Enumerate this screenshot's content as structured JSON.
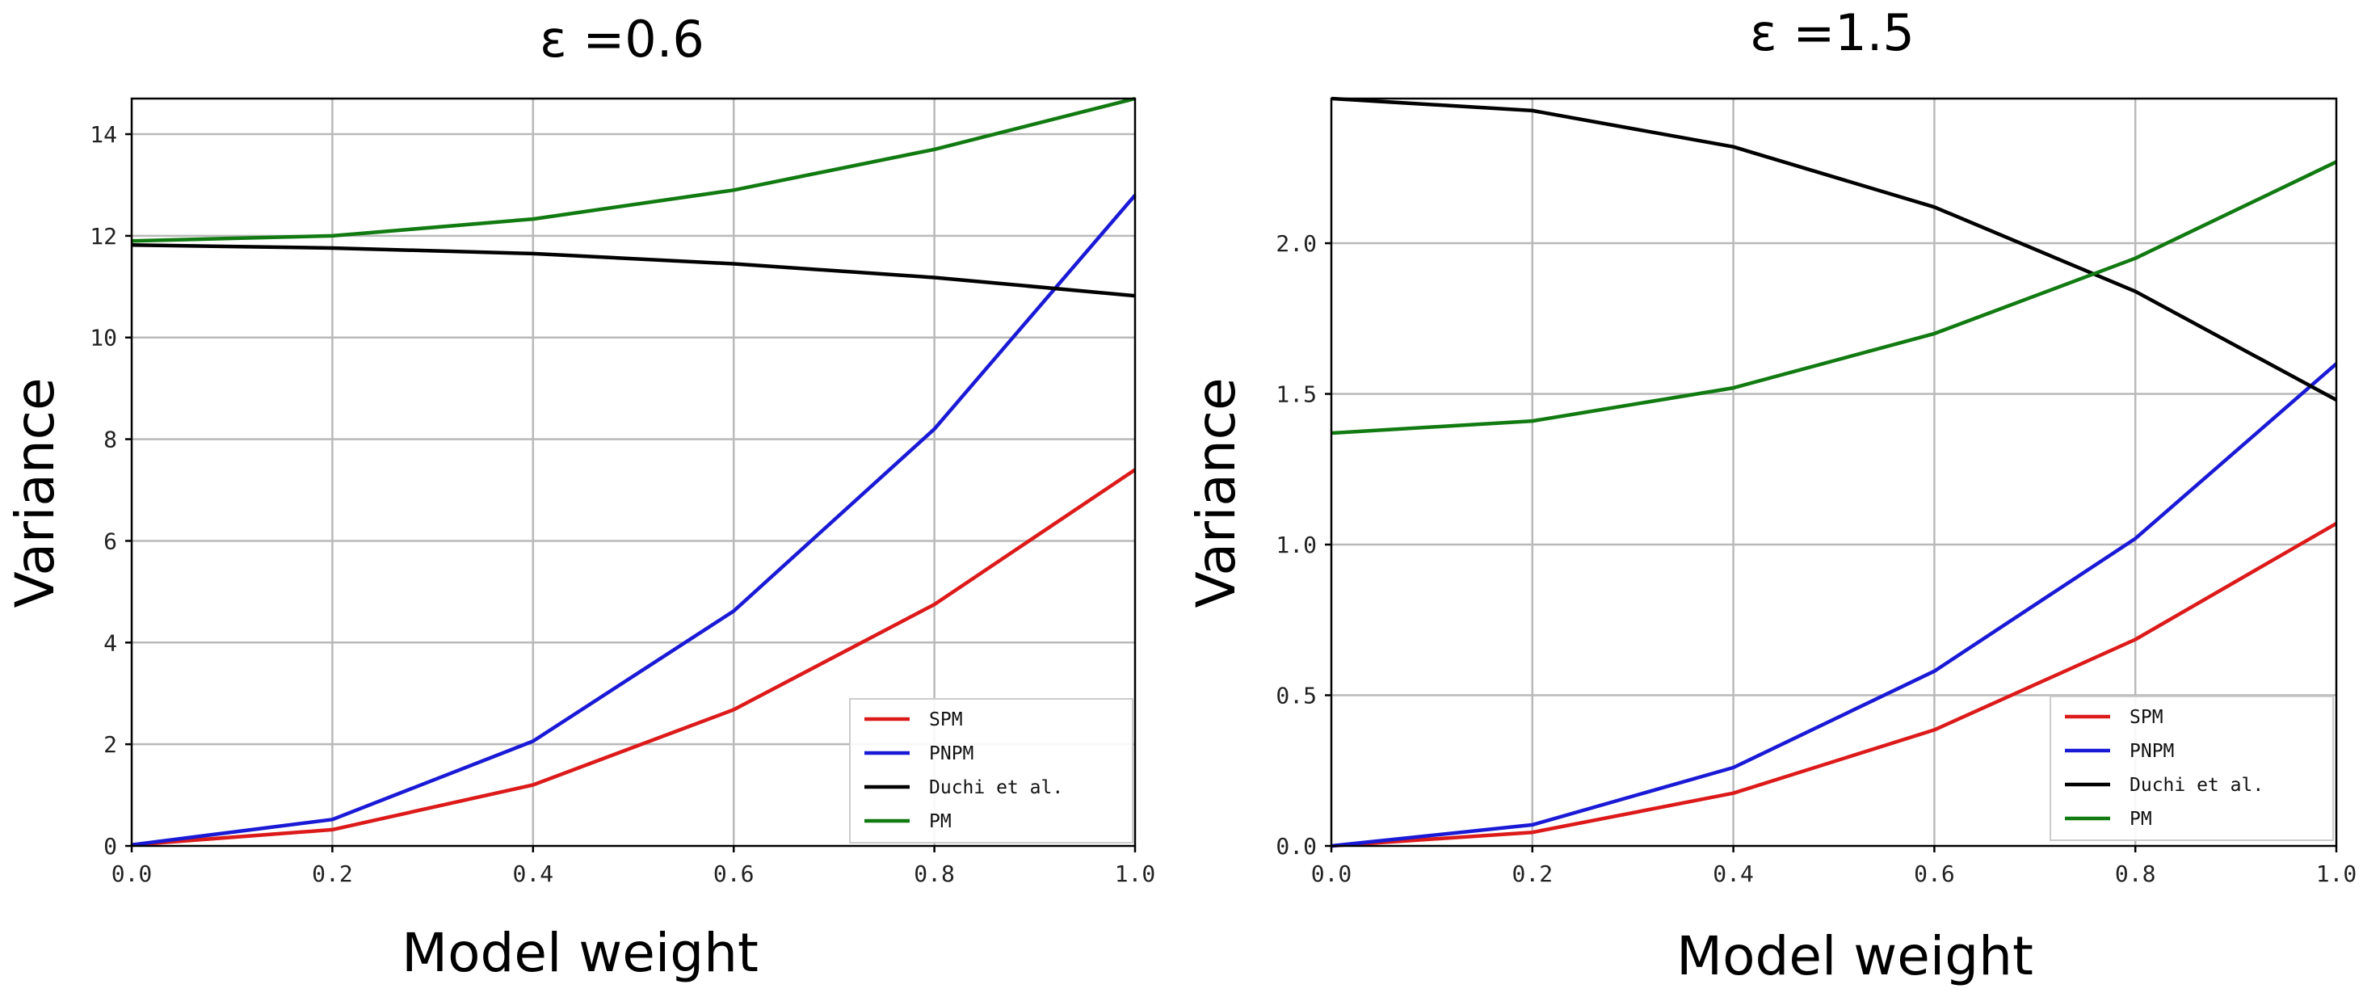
{
  "chart_data": [
    {
      "type": "line",
      "title": "ε =0.6",
      "xlabel": "Model weight",
      "ylabel": "Variance",
      "xlim": [
        0.0,
        1.0
      ],
      "ylim": [
        0,
        14.7
      ],
      "x": [
        0.0,
        0.2,
        0.4,
        0.6,
        0.8,
        1.0
      ],
      "xticks": [
        "0.0",
        "0.2",
        "0.4",
        "0.6",
        "0.8",
        "1.0"
      ],
      "yticks": [
        0,
        2,
        4,
        6,
        8,
        10,
        12,
        14
      ],
      "ytick_labels": [
        "0",
        "2",
        "4",
        "6",
        "8",
        "10",
        "12",
        "14"
      ],
      "grid": true,
      "legend_position": "lower-right",
      "series": [
        {
          "name": "SPM",
          "color": "#dd1a1a",
          "values": [
            0.02,
            0.32,
            1.2,
            2.68,
            4.75,
            7.4
          ]
        },
        {
          "name": "PNPM",
          "color": "#1a1ad6",
          "values": [
            0.02,
            0.52,
            2.06,
            4.62,
            8.2,
            12.8
          ]
        },
        {
          "name": "Duchi et al.",
          "color": "#000000",
          "values": [
            11.82,
            11.76,
            11.65,
            11.45,
            11.18,
            10.82
          ]
        },
        {
          "name": "PM",
          "color": "#117a11",
          "values": [
            11.9,
            12.0,
            12.33,
            12.9,
            13.7,
            14.7
          ]
        }
      ]
    },
    {
      "type": "line",
      "title": "ε =1.5",
      "xlabel": "Model weight",
      "ylabel": "Variance",
      "xlim": [
        0.0,
        1.0
      ],
      "ylim": [
        0,
        2.48
      ],
      "x": [
        0.0,
        0.2,
        0.4,
        0.6,
        0.8,
        1.0
      ],
      "xticks": [
        "0.0",
        "0.2",
        "0.4",
        "0.6",
        "0.8",
        "1.0"
      ],
      "yticks": [
        0.0,
        0.5,
        1.0,
        1.5,
        2.0
      ],
      "ytick_labels": [
        "0.0",
        "0.5",
        "1.0",
        "1.5",
        "2.0"
      ],
      "grid": true,
      "legend_position": "lower-right",
      "series": [
        {
          "name": "SPM",
          "color": "#dd1a1a",
          "values": [
            0.0,
            0.045,
            0.175,
            0.385,
            0.685,
            1.07
          ]
        },
        {
          "name": "PNPM",
          "color": "#1a1ad6",
          "values": [
            0.0,
            0.07,
            0.26,
            0.58,
            1.02,
            1.6
          ]
        },
        {
          "name": "Duchi et al.",
          "color": "#000000",
          "values": [
            2.48,
            2.44,
            2.32,
            2.12,
            1.84,
            1.48
          ]
        },
        {
          "name": "PM",
          "color": "#117a11",
          "values": [
            1.37,
            1.41,
            1.52,
            1.7,
            1.95,
            2.27
          ]
        }
      ]
    }
  ]
}
